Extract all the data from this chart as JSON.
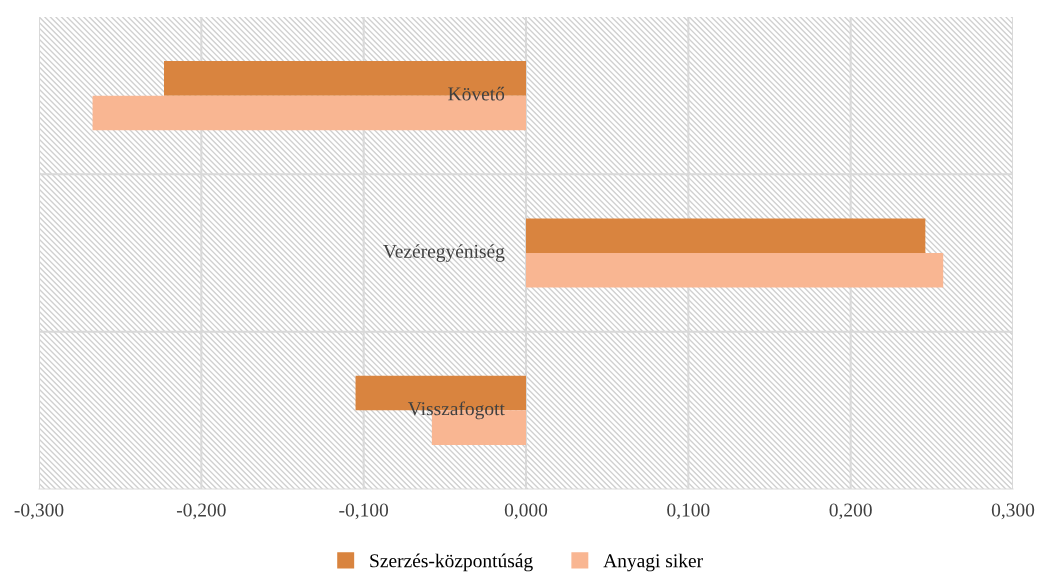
{
  "chart_data": {
    "type": "bar",
    "orientation": "horizontal",
    "categories": [
      "Követő",
      "Vezéregyéniség",
      "Visszafogott"
    ],
    "series": [
      {
        "name": "Szerzés-központúság",
        "color": "#d9843f",
        "values": [
          -0.223,
          0.246,
          -0.105
        ]
      },
      {
        "name": "Anyagi siker",
        "color": "#f9b692",
        "values": [
          -0.267,
          0.257,
          -0.058
        ]
      }
    ],
    "xlim": [
      -0.3,
      0.3
    ],
    "xticks": [
      {
        "value": -0.3,
        "label": "-0,300"
      },
      {
        "value": -0.2,
        "label": "-0,200"
      },
      {
        "value": -0.1,
        "label": "-0,100"
      },
      {
        "value": 0,
        "label": "0,000"
      },
      {
        "value": 0.1,
        "label": "0,100"
      },
      {
        "value": 0.2,
        "label": "0,200"
      },
      {
        "value": 0.3,
        "label": "0,300"
      }
    ],
    "grid": true,
    "legend": "bottom"
  }
}
